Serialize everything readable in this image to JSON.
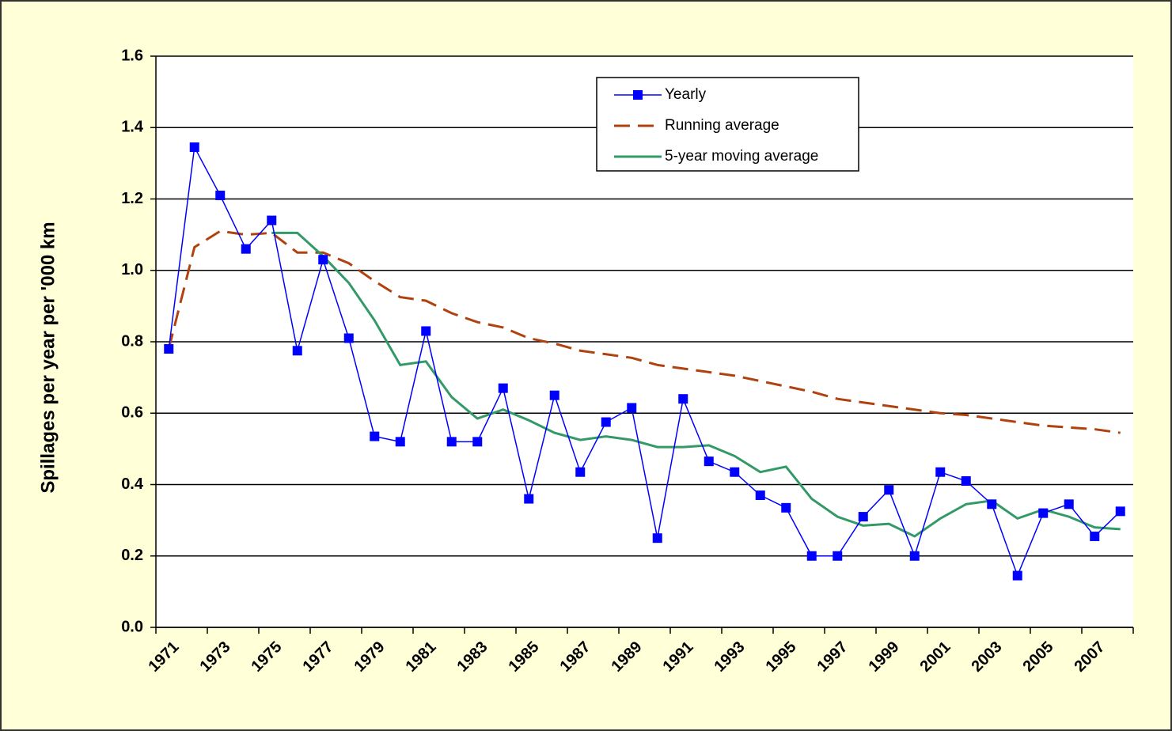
{
  "chart_data": {
    "type": "line",
    "ylabel": "Spillages per year per '000 km",
    "categories": [
      "1971",
      null,
      "1973",
      null,
      "1975",
      null,
      "1977",
      null,
      "1979",
      null,
      "1981",
      null,
      "1983",
      null,
      "1985",
      null,
      "1987",
      null,
      "1989",
      null,
      "1991",
      null,
      "1993",
      null,
      "1995",
      null,
      "1997",
      null,
      "1999",
      null,
      "2001",
      null,
      "2003",
      null,
      "2005",
      null,
      "2007",
      null
    ],
    "series": [
      {
        "name": "Yearly",
        "color": "#0000ff",
        "dash": false,
        "marker": "square",
        "values": [
          0.78,
          1.345,
          1.21,
          1.06,
          1.14,
          0.775,
          1.03,
          0.81,
          0.535,
          0.52,
          0.83,
          0.52,
          0.52,
          0.67,
          0.36,
          0.65,
          0.435,
          0.575,
          0.615,
          0.25,
          0.64,
          0.465,
          0.435,
          0.37,
          0.335,
          0.2,
          0.2,
          0.31,
          0.385,
          0.2,
          0.435,
          0.41,
          0.345,
          0.145,
          0.32,
          0.345,
          0.255,
          0.325
        ]
      },
      {
        "name": "Running average",
        "color": "#b0420f",
        "dash": true,
        "marker": null,
        "values": [
          0.78,
          1.065,
          1.11,
          1.1,
          1.105,
          1.05,
          1.05,
          1.02,
          0.97,
          0.925,
          0.915,
          0.88,
          0.855,
          0.84,
          0.81,
          0.795,
          0.775,
          0.765,
          0.755,
          0.735,
          0.725,
          0.715,
          0.705,
          0.69,
          0.675,
          0.66,
          0.64,
          0.63,
          0.62,
          0.61,
          0.6,
          0.595,
          0.585,
          0.575,
          0.565,
          0.56,
          0.555,
          0.545
        ]
      },
      {
        "name": "5-year moving average",
        "color": "#339966",
        "dash": false,
        "marker": null,
        "values": [
          null,
          null,
          null,
          null,
          1.105,
          1.105,
          1.04,
          0.965,
          0.86,
          0.735,
          0.745,
          0.645,
          0.585,
          0.61,
          0.58,
          0.545,
          0.525,
          0.535,
          0.525,
          0.505,
          0.505,
          0.51,
          0.48,
          0.435,
          0.45,
          0.36,
          0.31,
          0.285,
          0.29,
          0.255,
          0.305,
          0.345,
          0.355,
          0.305,
          0.33,
          0.31,
          0.28,
          0.275
        ]
      }
    ],
    "ylim": [
      0,
      1.6
    ],
    "yticks": [
      {
        "value": 0,
        "label": "0.0"
      },
      0.2,
      0.4,
      0.6,
      0.8,
      {
        "value": 1,
        "label": "1.0"
      },
      1.2,
      1.4,
      1.6
    ],
    "grid": true
  }
}
